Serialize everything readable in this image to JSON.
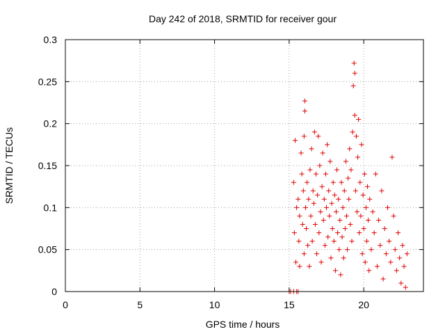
{
  "chart_data": {
    "type": "scatter",
    "title": "Day 242 of 2018, SRMTID for receiver gour",
    "xlabel": "GPS time / hours",
    "ylabel": "SRMTID / TECUs",
    "xlim": [
      0,
      24
    ],
    "ylim": [
      0,
      0.3
    ],
    "x_ticks": [
      0,
      5,
      10,
      15,
      20
    ],
    "x_tick_labels": [
      "0",
      "5",
      "10",
      "15",
      "20"
    ],
    "y_ticks": [
      0,
      0.05,
      0.1,
      0.15,
      0.2,
      0.25,
      0.3
    ],
    "y_tick_labels": [
      "0",
      "0.05",
      "0.1",
      "0.15",
      "0.2",
      "0.25",
      "0.3"
    ],
    "grid": true,
    "marker": "+",
    "marker_color": "#e00000",
    "series": [
      {
        "name": "SRMTID",
        "points": [
          [
            15.0,
            0.0
          ],
          [
            15.1,
            0.0
          ],
          [
            15.5,
            0.0
          ],
          [
            15.6,
            0.0
          ],
          [
            15.3,
            0.0
          ],
          [
            15.3,
            0.13
          ],
          [
            15.35,
            0.07
          ],
          [
            15.4,
            0.18
          ],
          [
            15.45,
            0.035
          ],
          [
            15.5,
            0.1
          ],
          [
            15.6,
            0.11
          ],
          [
            15.65,
            0.06
          ],
          [
            15.7,
            0.09
          ],
          [
            15.7,
            0.03
          ],
          [
            15.8,
            0.165
          ],
          [
            15.85,
            0.14
          ],
          [
            15.9,
            0.08
          ],
          [
            15.95,
            0.12
          ],
          [
            16.0,
            0.185
          ],
          [
            16.0,
            0.045
          ],
          [
            16.05,
            0.227
          ],
          [
            16.05,
            0.215
          ],
          [
            16.1,
            0.1
          ],
          [
            16.15,
            0.075
          ],
          [
            16.2,
            0.13
          ],
          [
            16.25,
            0.055
          ],
          [
            16.3,
            0.11
          ],
          [
            16.35,
            0.03
          ],
          [
            16.4,
            0.145
          ],
          [
            16.45,
            0.09
          ],
          [
            16.5,
            0.17
          ],
          [
            16.55,
            0.06
          ],
          [
            16.6,
            0.12
          ],
          [
            16.65,
            0.105
          ],
          [
            16.7,
            0.19
          ],
          [
            16.75,
            0.08
          ],
          [
            16.8,
            0.14
          ],
          [
            16.85,
            0.045
          ],
          [
            16.9,
            0.115
          ],
          [
            16.95,
            0.185
          ],
          [
            17.0,
            0.07
          ],
          [
            17.05,
            0.15
          ],
          [
            17.1,
            0.095
          ],
          [
            17.15,
            0.035
          ],
          [
            17.2,
            0.125
          ],
          [
            17.25,
            0.165
          ],
          [
            17.3,
            0.085
          ],
          [
            17.35,
            0.11
          ],
          [
            17.4,
            0.055
          ],
          [
            17.45,
            0.14
          ],
          [
            17.5,
            0.1
          ],
          [
            17.55,
            0.175
          ],
          [
            17.6,
            0.065
          ],
          [
            17.65,
            0.12
          ],
          [
            17.7,
            0.09
          ],
          [
            17.75,
            0.155
          ],
          [
            17.8,
            0.04
          ],
          [
            17.85,
            0.105
          ],
          [
            17.9,
            0.075
          ],
          [
            17.95,
            0.13
          ],
          [
            18.0,
            0.06
          ],
          [
            18.05,
            0.115
          ],
          [
            18.1,
            0.025
          ],
          [
            18.15,
            0.095
          ],
          [
            18.2,
            0.145
          ],
          [
            18.25,
            0.07
          ],
          [
            18.3,
            0.11
          ],
          [
            18.35,
            0.05
          ],
          [
            18.4,
            0.085
          ],
          [
            18.45,
            0.02
          ],
          [
            18.5,
            0.13
          ],
          [
            18.55,
            0.065
          ],
          [
            18.6,
            0.1
          ],
          [
            18.65,
            0.04
          ],
          [
            18.7,
            0.12
          ],
          [
            18.75,
            0.075
          ],
          [
            18.8,
            0.155
          ],
          [
            18.85,
            0.09
          ],
          [
            18.9,
            0.05
          ],
          [
            18.95,
            0.135
          ],
          [
            19.0,
            0.11
          ],
          [
            19.05,
            0.17
          ],
          [
            19.1,
            0.08
          ],
          [
            19.15,
            0.145
          ],
          [
            19.2,
            0.06
          ],
          [
            19.25,
            0.19
          ],
          [
            19.3,
            0.245
          ],
          [
            19.35,
            0.272
          ],
          [
            19.4,
            0.26
          ],
          [
            19.4,
            0.21
          ],
          [
            19.45,
            0.12
          ],
          [
            19.5,
            0.185
          ],
          [
            19.55,
            0.095
          ],
          [
            19.6,
            0.16
          ],
          [
            19.65,
            0.205
          ],
          [
            19.7,
            0.07
          ],
          [
            19.75,
            0.13
          ],
          [
            19.8,
            0.09
          ],
          [
            19.85,
            0.175
          ],
          [
            19.9,
            0.045
          ],
          [
            19.95,
            0.115
          ],
          [
            20.0,
            0.075
          ],
          [
            20.05,
            0.14
          ],
          [
            20.1,
            0.035
          ],
          [
            20.15,
            0.1
          ],
          [
            20.2,
            0.06
          ],
          [
            20.25,
            0.125
          ],
          [
            20.3,
            0.085
          ],
          [
            20.35,
            0.025
          ],
          [
            20.4,
            0.11
          ],
          [
            20.5,
            0.05
          ],
          [
            20.6,
            0.095
          ],
          [
            20.7,
            0.07
          ],
          [
            20.8,
            0.14
          ],
          [
            20.9,
            0.03
          ],
          [
            21.0,
            0.085
          ],
          [
            21.1,
            0.055
          ],
          [
            21.2,
            0.12
          ],
          [
            21.3,
            0.015
          ],
          [
            21.4,
            0.075
          ],
          [
            21.5,
            0.045
          ],
          [
            21.6,
            0.1
          ],
          [
            21.7,
            0.06
          ],
          [
            21.8,
            0.035
          ],
          [
            21.9,
            0.16
          ],
          [
            22.0,
            0.09
          ],
          [
            22.1,
            0.05
          ],
          [
            22.2,
            0.025
          ],
          [
            22.3,
            0.07
          ],
          [
            22.4,
            0.04
          ],
          [
            22.5,
            0.01
          ],
          [
            22.6,
            0.055
          ],
          [
            22.7,
            0.03
          ],
          [
            22.8,
            0.005
          ],
          [
            22.9,
            0.045
          ]
        ]
      }
    ]
  }
}
